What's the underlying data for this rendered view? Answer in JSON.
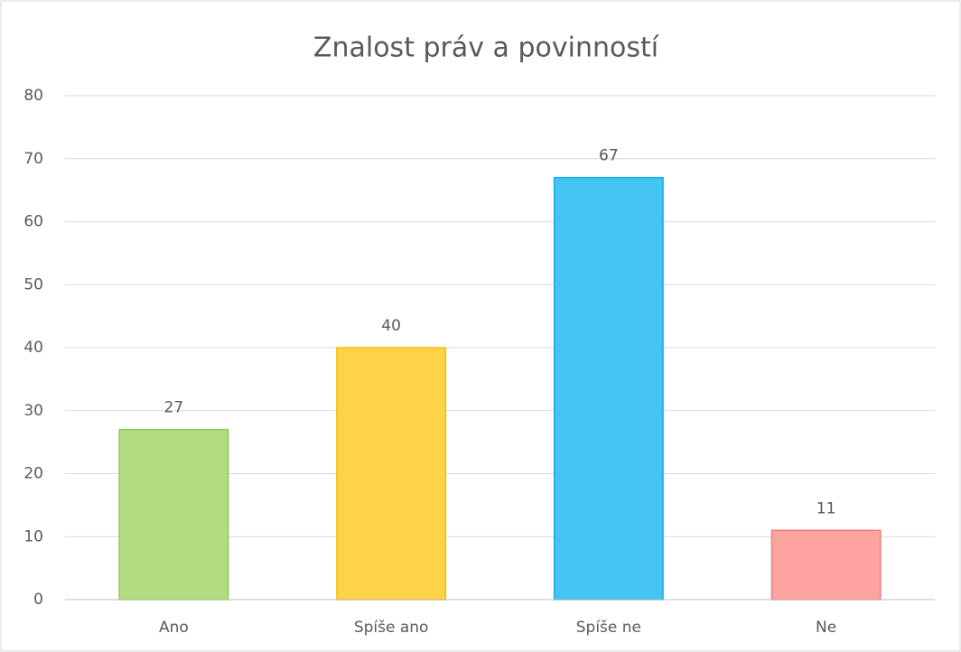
{
  "chart_data": {
    "type": "bar",
    "title": "Znalost práv a povinností",
    "categories": [
      "Ano",
      "Spíše ano",
      "Spíše ne",
      "Ne"
    ],
    "values": [
      27,
      40,
      67,
      11
    ],
    "colors": [
      "#b1dd80",
      "#ffd347",
      "#45c4f4",
      "#ffa3a0"
    ],
    "edge_colors": [
      "#8ccb4e",
      "#f5bd00",
      "#12ace6",
      "#f07d7a"
    ],
    "ylim": [
      0,
      80
    ],
    "yticks": [
      0,
      10,
      20,
      30,
      40,
      50,
      60,
      70,
      80
    ],
    "grid": true
  }
}
